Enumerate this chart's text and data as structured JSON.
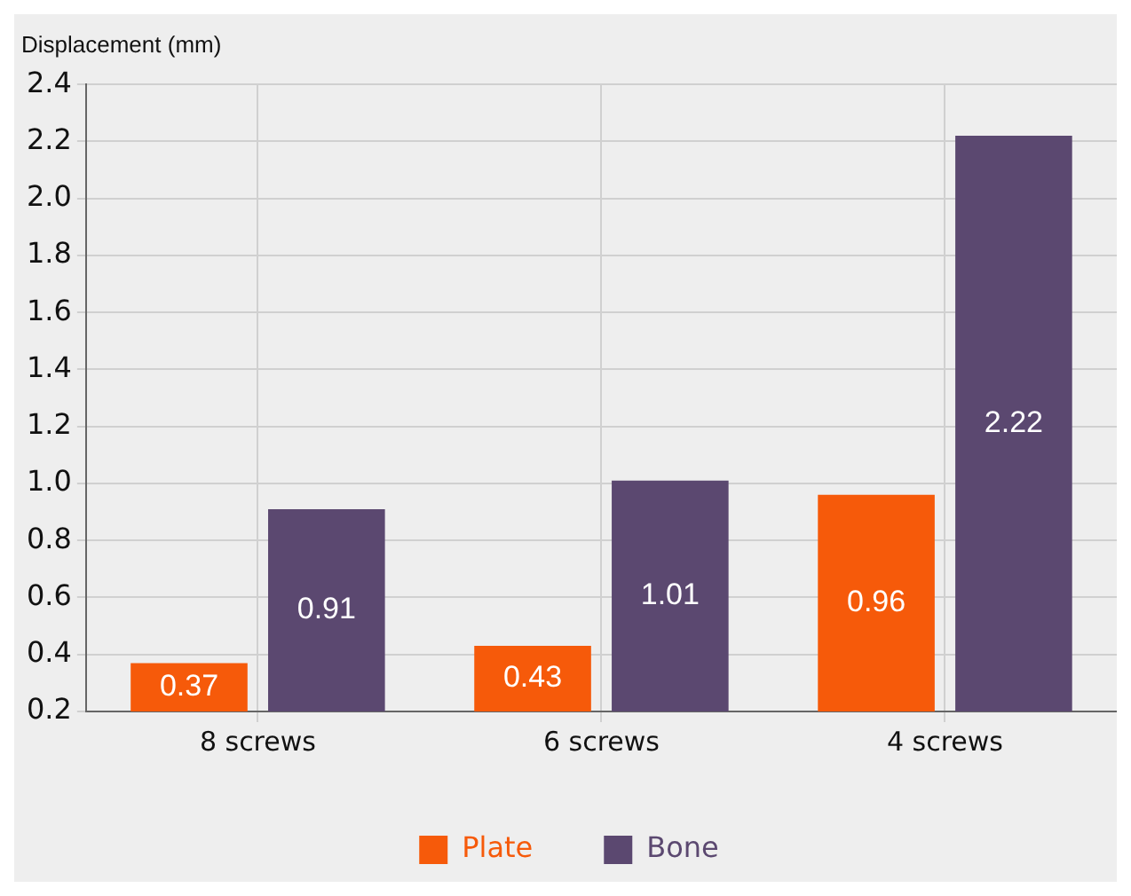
{
  "chart_data": {
    "type": "bar",
    "ylabel": "Displacement (mm)",
    "categories": [
      "8 screws",
      "6 screws",
      "4 screws"
    ],
    "series": [
      {
        "name": "Plate",
        "color": "#f65a0a",
        "values": [
          0.37,
          0.43,
          0.96
        ]
      },
      {
        "name": "Bone",
        "color": "#5b4870",
        "values": [
          0.91,
          1.01,
          2.22
        ]
      }
    ],
    "ylim": [
      0.2,
      2.4
    ],
    "yticks": [
      0.2,
      0.4,
      0.6,
      0.8,
      {
        "value": 1,
        "label": "1.0"
      },
      1.2,
      1.4,
      1.6,
      1.8,
      {
        "value": 2,
        "label": "2.0"
      },
      2.2,
      2.4
    ],
    "grid": true,
    "legend": "bottom",
    "data_labels": true
  }
}
